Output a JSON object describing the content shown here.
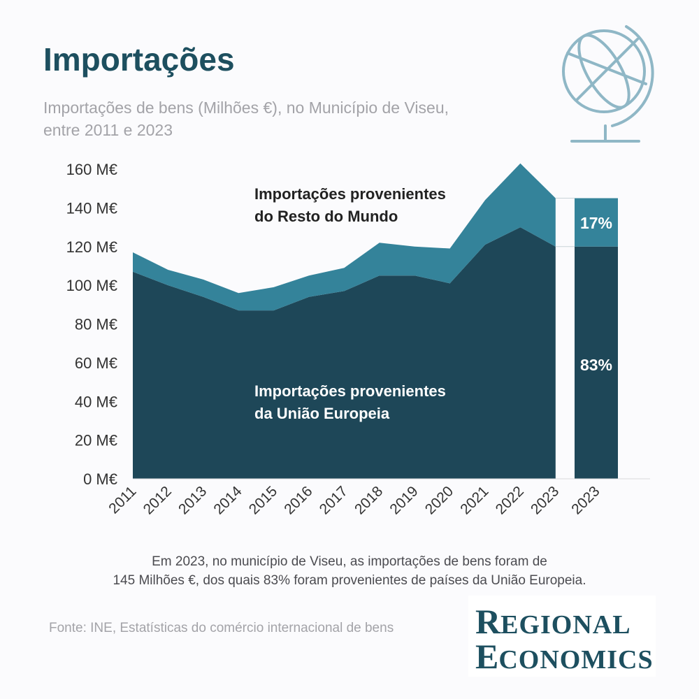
{
  "header": {
    "title": "Importações",
    "subtitle_line1": "Importações de bens (Milhões €), no Município de Viseu,",
    "subtitle_line2": "entre 2011 e 2023"
  },
  "caption": {
    "line1": "Em 2023, no município de Viseu, as importações de bens foram de",
    "line2": "145 Milhões €, dos quais 83% foram provenientes de países da União Europeia."
  },
  "source": "Fonte: INE, Estatísticas do comércio internacional de bens",
  "logo": {
    "line1_initial": "R",
    "line1_rest": "EGIONAL",
    "line2_initial": "E",
    "line2_rest": "CONOMICS"
  },
  "colors": {
    "eu": "#1e4758",
    "rest": "#34839a",
    "axis_text": "#333333",
    "label_dark": "#222222",
    "label_light": "#ffffff",
    "globe": "#8fb7c6"
  },
  "chart_data": {
    "type": "area",
    "stacked": true,
    "title": "Importações",
    "ylabel": "",
    "xlabel": "",
    "ylim": [
      0,
      160
    ],
    "yticks": [
      0,
      20,
      40,
      60,
      80,
      100,
      120,
      140,
      160
    ],
    "ytick_suffix": " M€",
    "x": [
      "2011",
      "2012",
      "2013",
      "2014",
      "2015",
      "2016",
      "2017",
      "2018",
      "2019",
      "2020",
      "2021",
      "2022",
      "2023"
    ],
    "series": [
      {
        "name": "Importações provenientes da União Europeia",
        "label_line1": "Importações provenientes",
        "label_line2": "da União Europeia",
        "values": [
          107,
          100,
          94,
          87,
          87,
          94,
          97,
          105,
          105,
          101,
          121,
          130,
          120
        ]
      },
      {
        "name": "Importações provenientes do Resto do Mundo",
        "label_line1": "Importações provenientes",
        "label_line2": "do Resto do Mundo",
        "values": [
          10,
          8,
          9,
          9,
          12,
          11,
          12,
          17,
          15,
          18,
          23,
          33,
          25
        ]
      }
    ],
    "summary_bar": {
      "category": "2023",
      "eu_value": 120,
      "rest_value": 25,
      "eu_share_label": "83%",
      "rest_share_label": "17%"
    }
  }
}
